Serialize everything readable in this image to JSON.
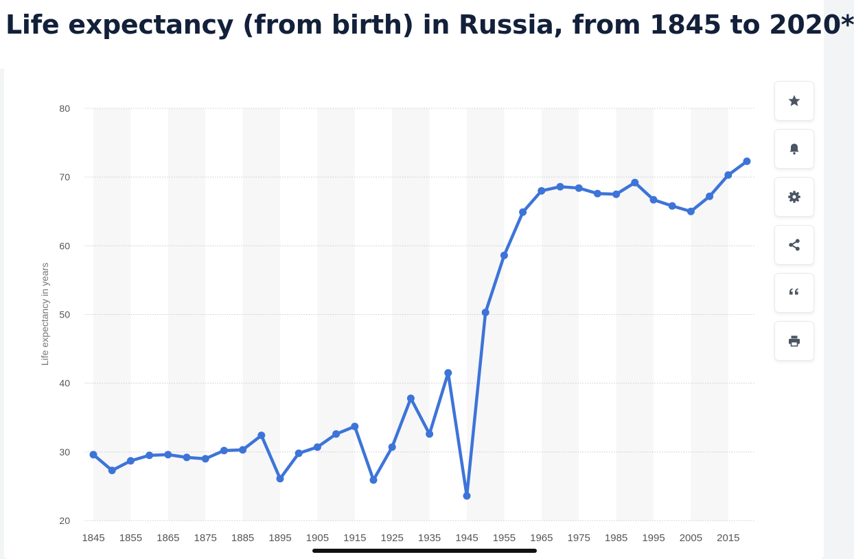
{
  "page": {
    "title": "Life expectancy (from birth) in Russia, from 1845 to 2020*"
  },
  "toolbar": {
    "buttons": [
      {
        "name": "favorite",
        "icon": "star-icon"
      },
      {
        "name": "notify",
        "icon": "bell-icon"
      },
      {
        "name": "settings",
        "icon": "gear-icon"
      },
      {
        "name": "share",
        "icon": "share-icon"
      },
      {
        "name": "cite",
        "icon": "quote-icon"
      },
      {
        "name": "print",
        "icon": "print-icon"
      }
    ]
  },
  "colors": {
    "line": "#3d74d8",
    "title": "#13203a",
    "icon": "#4b5563",
    "stripe": "#f7f7f8",
    "grid": "#c9c9c9",
    "axis_text": "#555555"
  },
  "chart_data": {
    "type": "line",
    "title": "Life expectancy (from birth) in Russia, from 1845 to 2020*",
    "xlabel": "",
    "ylabel": "Life expectancy in years",
    "ylim": [
      20,
      80
    ],
    "yticks": [
      20,
      30,
      40,
      50,
      60,
      70,
      80
    ],
    "xtick_labels": [
      "1845",
      "1855",
      "1865",
      "1875",
      "1885",
      "1895",
      "1905",
      "1915",
      "1925",
      "1935",
      "1945",
      "1955",
      "1965",
      "1975",
      "1985",
      "1995",
      "2005",
      "2015"
    ],
    "grid": true,
    "series": [
      {
        "name": "Life expectancy",
        "x": [
          1845,
          1850,
          1855,
          1860,
          1865,
          1870,
          1875,
          1880,
          1885,
          1890,
          1895,
          1900,
          1905,
          1910,
          1915,
          1920,
          1925,
          1930,
          1935,
          1940,
          1945,
          1950,
          1955,
          1960,
          1965,
          1970,
          1975,
          1980,
          1985,
          1990,
          1995,
          2000,
          2005,
          2010,
          2015,
          2020
        ],
        "values": [
          29.6,
          27.3,
          28.7,
          29.5,
          29.6,
          29.2,
          29.0,
          30.2,
          30.3,
          32.4,
          26.1,
          29.8,
          30.7,
          32.6,
          33.7,
          25.9,
          30.7,
          37.8,
          32.6,
          41.5,
          23.6,
          50.3,
          58.6,
          64.9,
          68.0,
          68.6,
          68.4,
          67.6,
          67.5,
          69.2,
          66.7,
          65.8,
          65.0,
          67.2,
          70.3,
          72.3
        ]
      }
    ]
  }
}
